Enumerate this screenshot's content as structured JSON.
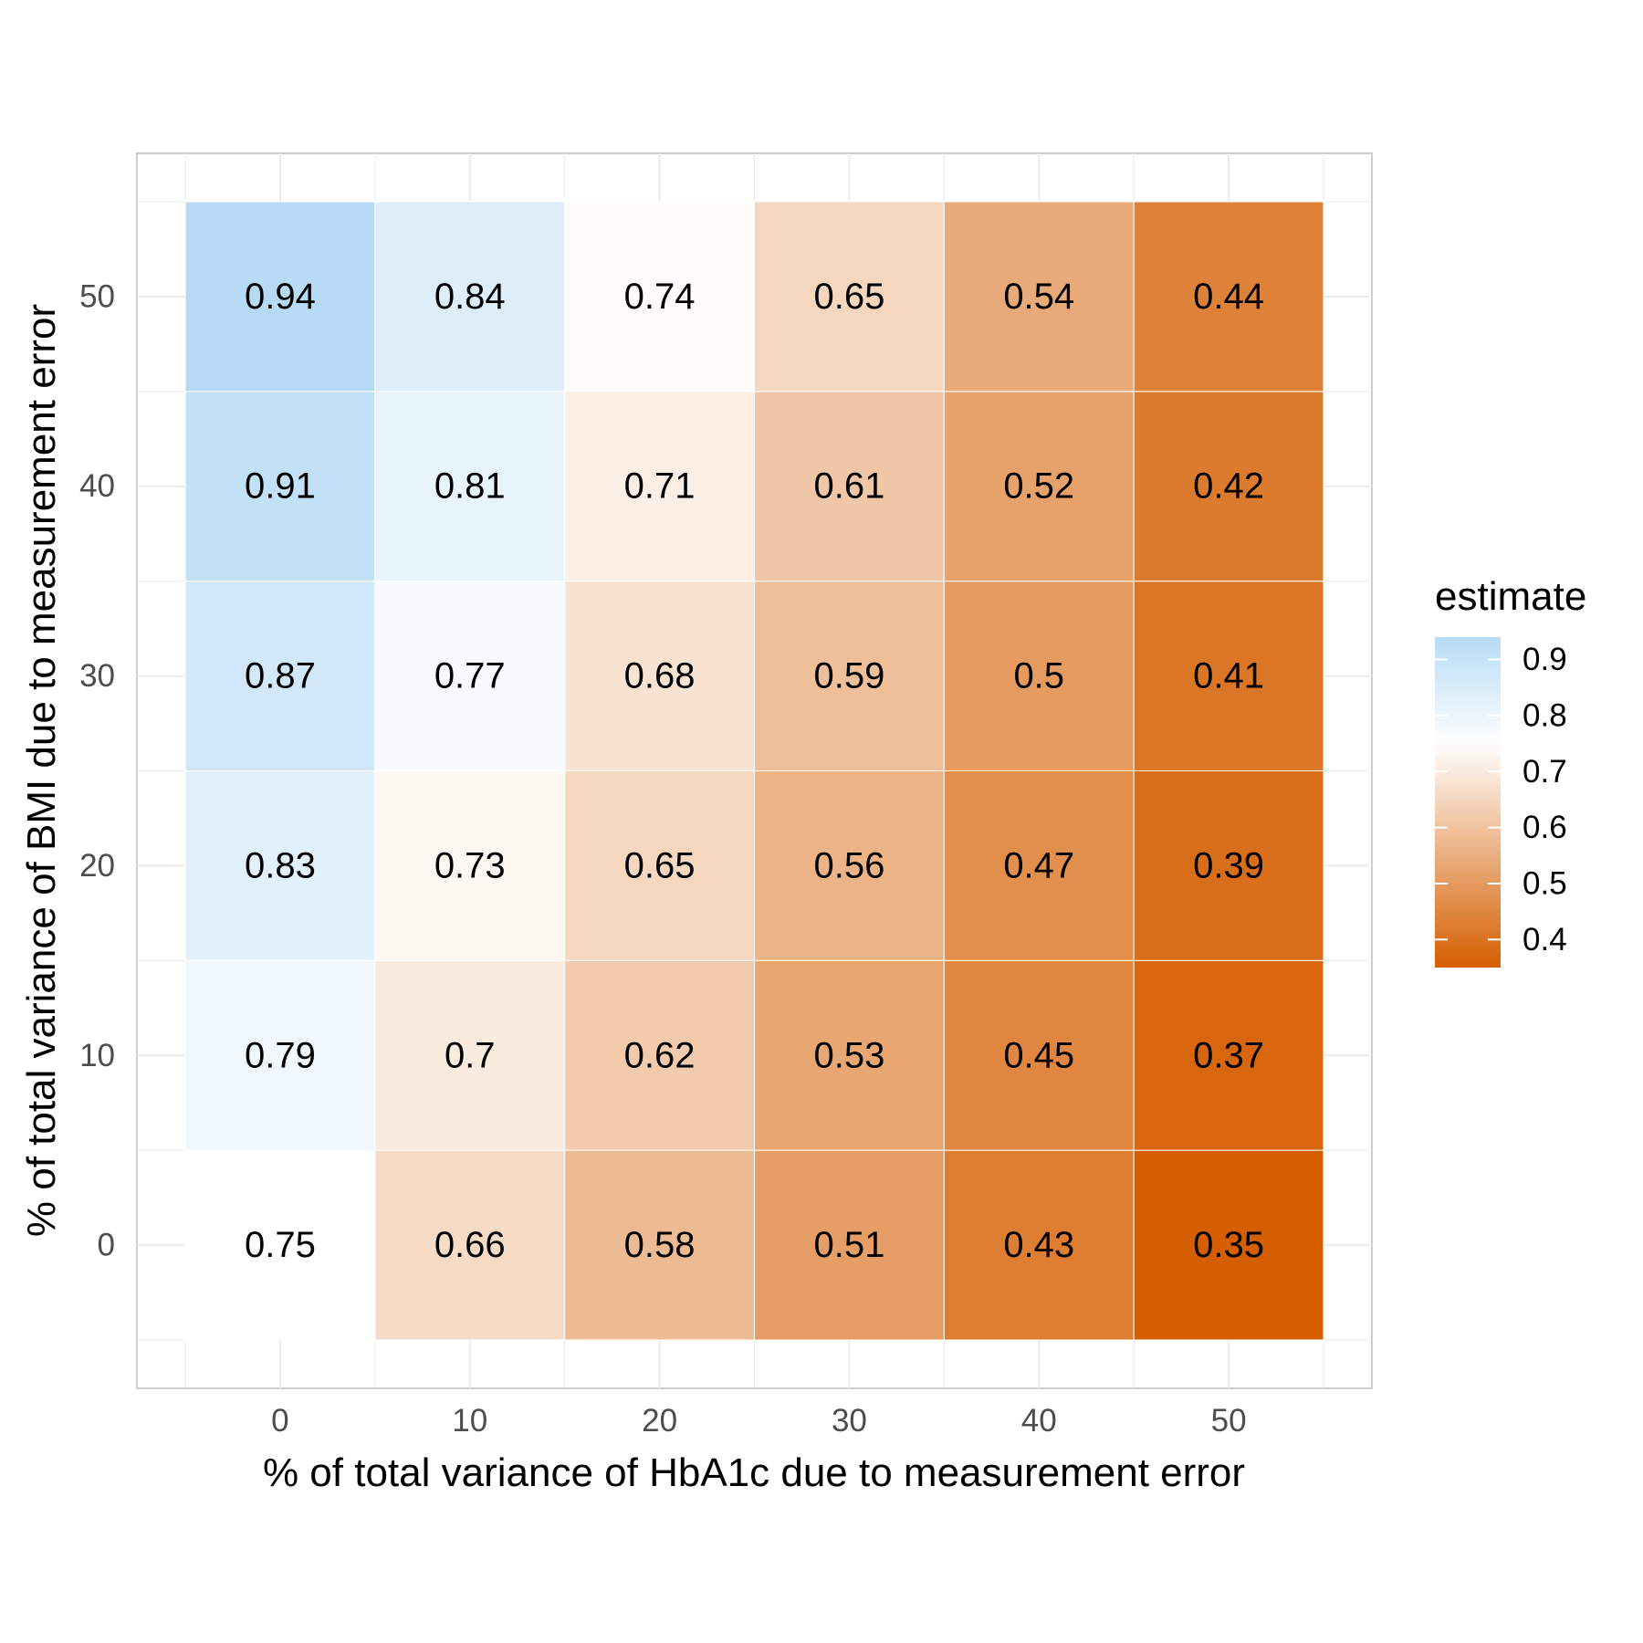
{
  "chart_data": {
    "type": "heatmap",
    "xlabel": "% of total variance of HbA1c due to measurement error",
    "ylabel": "% of total variance of BMI due to measurement error",
    "x": [
      0,
      10,
      20,
      30,
      40,
      50
    ],
    "y": [
      0,
      10,
      20,
      30,
      40,
      50
    ],
    "x_tick_labels": [
      "0",
      "10",
      "20",
      "30",
      "40",
      "50"
    ],
    "y_tick_labels": [
      "0",
      "10",
      "20",
      "30",
      "40",
      "50"
    ],
    "xlim": [
      -5,
      55
    ],
    "ylim": [
      -5,
      55
    ],
    "values": [
      [
        0.75,
        0.66,
        0.58,
        0.51,
        0.43,
        0.35
      ],
      [
        0.79,
        0.7,
        0.62,
        0.53,
        0.45,
        0.37
      ],
      [
        0.83,
        0.73,
        0.65,
        0.56,
        0.47,
        0.39
      ],
      [
        0.87,
        0.77,
        0.68,
        0.59,
        0.5,
        0.41
      ],
      [
        0.91,
        0.81,
        0.71,
        0.61,
        0.52,
        0.42
      ],
      [
        0.94,
        0.84,
        0.74,
        0.65,
        0.54,
        0.44
      ]
    ],
    "value_labels": [
      [
        "0.75",
        "0.66",
        "0.58",
        "0.51",
        "0.43",
        "0.35"
      ],
      [
        "0.79",
        "0.7",
        "0.62",
        "0.53",
        "0.45",
        "0.37"
      ],
      [
        "0.83",
        "0.73",
        "0.65",
        "0.56",
        "0.47",
        "0.39"
      ],
      [
        "0.87",
        "0.77",
        "0.68",
        "0.59",
        "0.5",
        "0.41"
      ],
      [
        "0.91",
        "0.81",
        "0.71",
        "0.61",
        "0.52",
        "0.42"
      ],
      [
        "0.94",
        "0.84",
        "0.74",
        "0.65",
        "0.54",
        "0.44"
      ]
    ],
    "legend": {
      "title": "estimate",
      "position": "right",
      "labels": [
        "0.9",
        "0.8",
        "0.7",
        "0.6",
        "0.5",
        "0.4"
      ],
      "label_values": [
        0.9,
        0.8,
        0.7,
        0.6,
        0.5,
        0.4
      ],
      "range": [
        0.35,
        0.94
      ]
    },
    "color_scale": {
      "low": "#d55e00",
      "mid": "#ffffff",
      "high": "#b7dbf5",
      "midpoint": 0.75
    },
    "grid": true
  }
}
